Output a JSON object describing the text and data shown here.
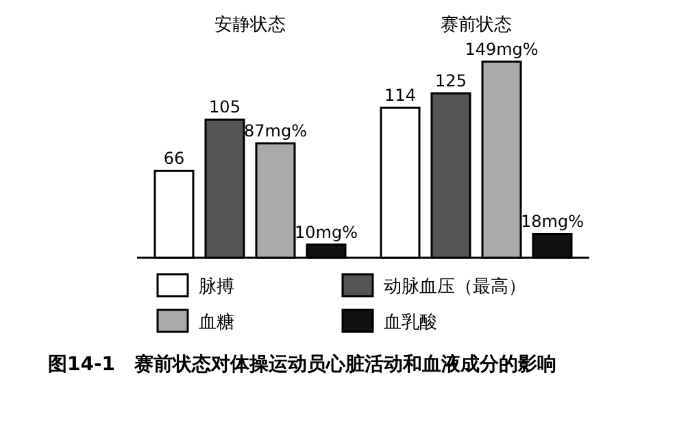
{
  "chart_data": {
    "type": "bar",
    "title": "图14-1　赛前状态对体操运动员心脏活动和血液成分的影响",
    "categories": [
      "安静状态",
      "赛前状态"
    ],
    "series": [
      {
        "name": "脉搏",
        "color": "#ffffff",
        "values": [
          66,
          114
        ],
        "value_labels": [
          "66",
          "114"
        ]
      },
      {
        "name": "动脉血压（最高）",
        "color": "#555555",
        "values": [
          105,
          125
        ],
        "value_labels": [
          "105",
          "125"
        ]
      },
      {
        "name": "血糖",
        "color": "#aaaaaa",
        "values": [
          87,
          149
        ],
        "value_labels": [
          "87mg%",
          "149mg%"
        ]
      },
      {
        "name": "血乳酸",
        "color": "#111111",
        "values": [
          10,
          18
        ],
        "value_labels": [
          "10mg%",
          "18mg%"
        ]
      }
    ],
    "legend": "bottom"
  }
}
